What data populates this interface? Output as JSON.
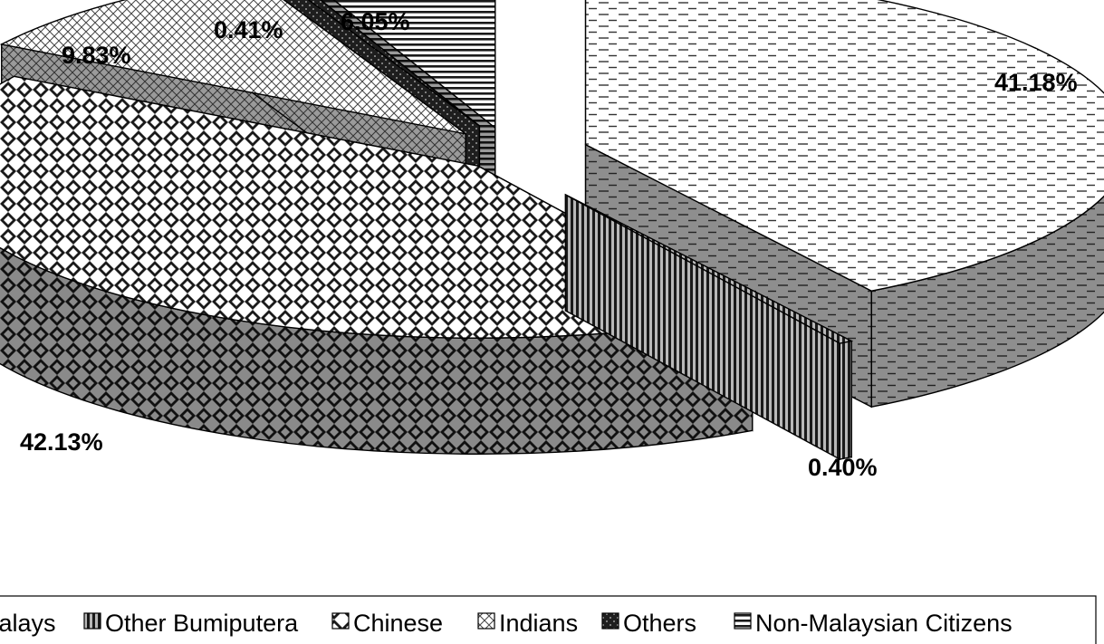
{
  "chart_data": {
    "type": "pie",
    "variant": "3d-exploded",
    "categories": [
      "Malays",
      "Other Bumiputera",
      "Chinese",
      "Indians",
      "Others",
      "Non-Malaysian Citizens"
    ],
    "values": [
      41.18,
      0.4,
      42.13,
      9.83,
      0.41,
      6.05
    ],
    "value_labels": [
      "41.18%",
      "0.40%",
      "42.13%",
      "9.83%",
      "0.41%",
      "6.05%"
    ],
    "legend": {
      "placement": "bottom",
      "entries": [
        {
          "name": "Malays",
          "pattern": "dashes"
        },
        {
          "name": "Other Bumiputera",
          "pattern": "vertical-stripes"
        },
        {
          "name": "Chinese",
          "pattern": "checker-diamonds"
        },
        {
          "name": "Indians",
          "pattern": "crosshatch"
        },
        {
          "name": "Others",
          "pattern": "dark-dotted"
        },
        {
          "name": "Non-Malaysian Citizens",
          "pattern": "horizontal-stripes"
        }
      ]
    },
    "colors": {
      "top_base": "#ffffff",
      "side_base": "#9a9a9a",
      "dark_fill": "#222222",
      "stroke": "#000000"
    }
  }
}
